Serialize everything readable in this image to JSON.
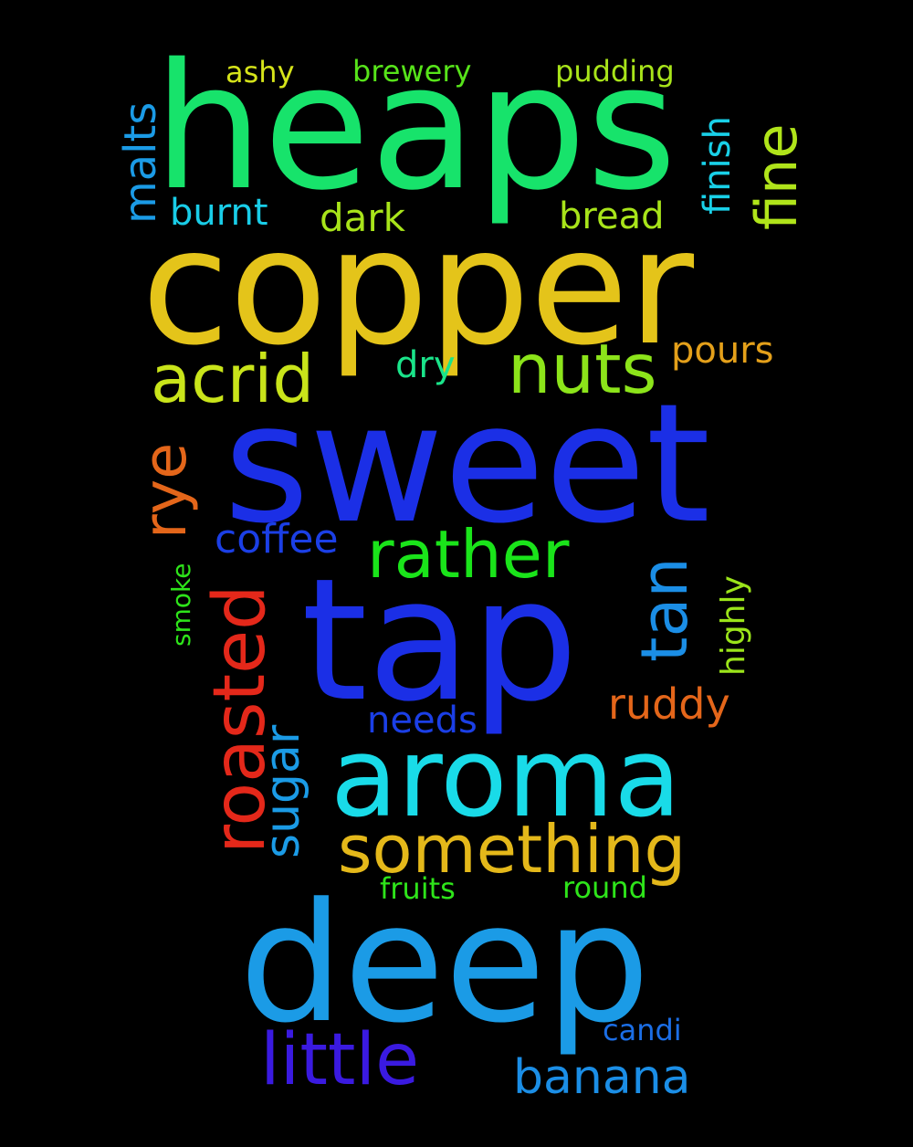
{
  "words": [
    {
      "text": "heaps",
      "color": "#17e36b",
      "vertical": false
    },
    {
      "text": "copper",
      "color": "#e4c41a",
      "vertical": false
    },
    {
      "text": "sweet",
      "color": "#1b2fe6",
      "vertical": false
    },
    {
      "text": "tap",
      "color": "#1b2fe6",
      "vertical": false
    },
    {
      "text": "aroma",
      "color": "#19dbe8",
      "vertical": false
    },
    {
      "text": "deep",
      "color": "#1b9be6",
      "vertical": false
    },
    {
      "text": "something",
      "color": "#e4b81a",
      "vertical": false
    },
    {
      "text": "little",
      "color": "#3a1ae0",
      "vertical": false
    },
    {
      "text": "banana",
      "color": "#1b8ee6",
      "vertical": false
    },
    {
      "text": "acrid",
      "color": "#c9e41a",
      "vertical": false
    },
    {
      "text": "nuts",
      "color": "#8ce41a",
      "vertical": false
    },
    {
      "text": "rather",
      "color": "#1ae41a",
      "vertical": false
    },
    {
      "text": "roasted",
      "color": "#e4281a",
      "vertical": true
    },
    {
      "text": "rye",
      "color": "#e4661a",
      "vertical": true
    },
    {
      "text": "tan",
      "color": "#1b8ee6",
      "vertical": true
    },
    {
      "text": "malts",
      "color": "#1b9be6",
      "vertical": true
    },
    {
      "text": "fine",
      "color": "#b0e41a",
      "vertical": true
    },
    {
      "text": "finish",
      "color": "#19d0e8",
      "vertical": true
    },
    {
      "text": "sugar",
      "color": "#1b9be6",
      "vertical": true
    },
    {
      "text": "highly",
      "color": "#9be41a",
      "vertical": true
    },
    {
      "text": "smoke",
      "color": "#2ee41a",
      "vertical": true
    },
    {
      "text": "ruddy",
      "color": "#e4661a",
      "vertical": false
    },
    {
      "text": "pours",
      "color": "#e4a01a",
      "vertical": false
    },
    {
      "text": "coffee",
      "color": "#1b3fe6",
      "vertical": false
    },
    {
      "text": "needs",
      "color": "#1b3fe6",
      "vertical": false
    },
    {
      "text": "bread",
      "color": "#a8e41a",
      "vertical": false
    },
    {
      "text": "burnt",
      "color": "#19cde8",
      "vertical": false
    },
    {
      "text": "dark",
      "color": "#a8e41a",
      "vertical": false
    },
    {
      "text": "dry",
      "color": "#1ae48a",
      "vertical": false
    },
    {
      "text": "ashy",
      "color": "#d6e41a",
      "vertical": false
    },
    {
      "text": "brewery",
      "color": "#57e41a",
      "vertical": false
    },
    {
      "text": "pudding",
      "color": "#a8e41a",
      "vertical": false
    },
    {
      "text": "fruits",
      "color": "#2ee41a",
      "vertical": false
    },
    {
      "text": "round",
      "color": "#2ee41a",
      "vertical": false
    },
    {
      "text": "candi",
      "color": "#1b6ee6",
      "vertical": false
    }
  ]
}
